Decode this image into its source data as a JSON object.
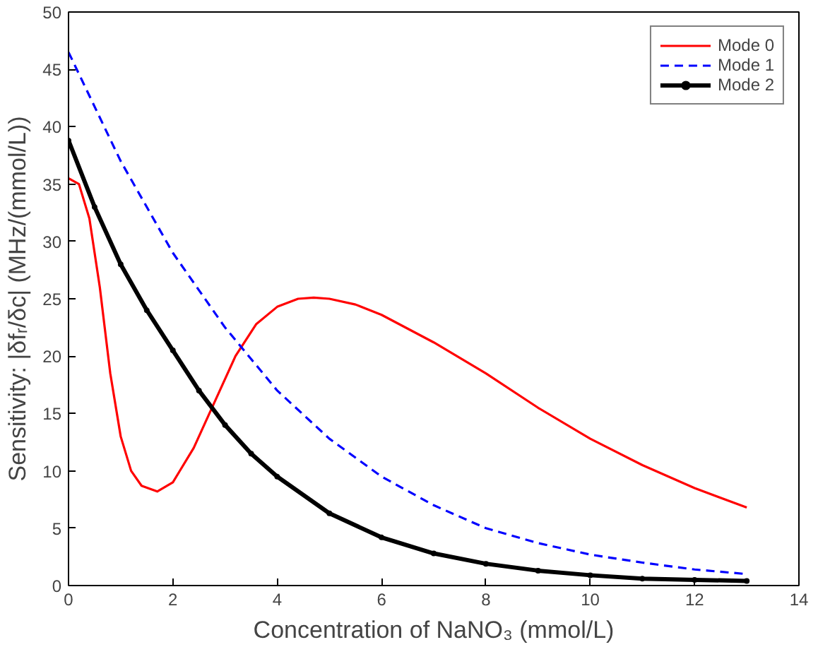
{
  "chart_data": {
    "type": "line",
    "xlabel": "Concentration of NaNO₃ (mmol/L)",
    "ylabel": "Sensitivity: |δfᵣ/δc| (MHz/(mmol/L))",
    "xlim": [
      0,
      14
    ],
    "xticks": [
      0,
      2,
      4,
      6,
      8,
      10,
      12,
      14
    ],
    "ylim": [
      0,
      50
    ],
    "yticks": [
      0,
      5,
      10,
      15,
      20,
      25,
      30,
      35,
      40,
      45,
      50
    ],
    "grid": false,
    "legend": "top right",
    "series": [
      {
        "name": "Mode 0",
        "color": "#ff0000",
        "line_style": "solid",
        "x": [
          0,
          0.2,
          0.4,
          0.6,
          0.8,
          1.0,
          1.2,
          1.4,
          1.7,
          2.0,
          2.4,
          2.8,
          3.2,
          3.6,
          4.0,
          4.4,
          4.7,
          5.0,
          5.5,
          6,
          7,
          8,
          9,
          10,
          11,
          12,
          13
        ],
        "values": [
          35.5,
          35,
          32,
          26,
          18.5,
          13,
          10,
          8.7,
          8.2,
          9,
          12,
          16,
          20,
          22.8,
          24.3,
          25,
          25.1,
          25,
          24.5,
          23.6,
          21.2,
          18.5,
          15.5,
          12.8,
          10.5,
          8.5,
          6.8
        ]
      },
      {
        "name": "Mode 1",
        "color": "#0000ff",
        "line_style": "dashed",
        "x": [
          0,
          1,
          2,
          3,
          4,
          5,
          6,
          7,
          8,
          9,
          10,
          11,
          12,
          13
        ],
        "values": [
          46.5,
          37,
          29,
          22.5,
          17,
          12.8,
          9.5,
          7,
          5,
          3.7,
          2.7,
          2,
          1.4,
          1.0
        ]
      },
      {
        "name": "Mode 2",
        "color": "#000000",
        "line_style": "solid",
        "marker": "circle",
        "x": [
          0,
          0.5,
          1,
          1.5,
          2,
          2.5,
          3,
          3.5,
          4,
          5,
          6,
          7,
          8,
          9,
          10,
          11,
          12,
          13
        ],
        "values": [
          38.8,
          33,
          28,
          24,
          20.5,
          17,
          14,
          11.5,
          9.5,
          6.3,
          4.2,
          2.8,
          1.9,
          1.3,
          0.9,
          0.6,
          0.5,
          0.4
        ]
      }
    ]
  }
}
